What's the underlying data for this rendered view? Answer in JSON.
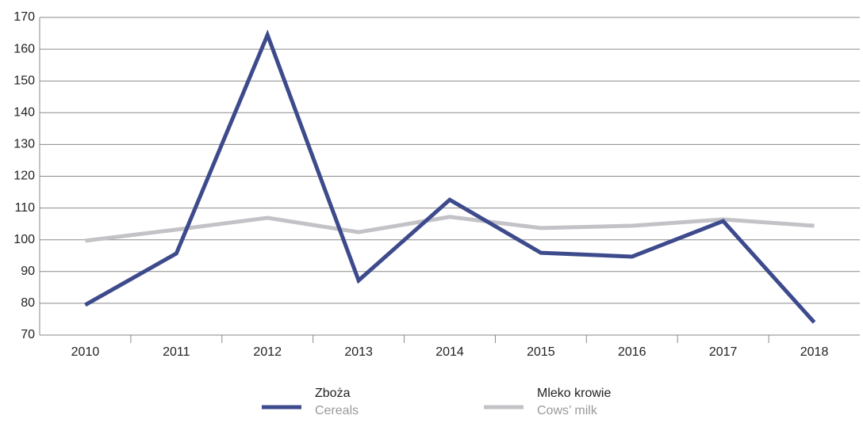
{
  "chart_data": {
    "type": "line",
    "categories": [
      "2010",
      "2011",
      "2012",
      "2013",
      "2014",
      "2015",
      "2016",
      "2017",
      "2018"
    ],
    "series": [
      {
        "name": "Zboża",
        "name_en": "Cereals",
        "color": "#3d4a8c",
        "values": [
          79.5,
          95.7,
          164.5,
          87.2,
          112.6,
          95.9,
          94.7,
          105.9,
          74
        ]
      },
      {
        "name": "Mleko krowie",
        "name_en": "Cows’ milk",
        "color": "#c3c3c7",
        "values": [
          99.7,
          103.2,
          106.9,
          102.4,
          107.2,
          103.7,
          104.4,
          106.4,
          104.4
        ]
      }
    ],
    "ylim": [
      70,
      170
    ],
    "yticks": [
      70,
      80,
      90,
      100,
      110,
      120,
      130,
      140,
      150,
      160,
      170
    ],
    "grid": true
  }
}
